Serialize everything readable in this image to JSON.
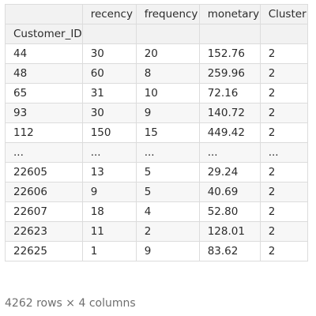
{
  "table": {
    "columns": [
      "recency",
      "frequency",
      "monetary",
      "Cluster"
    ],
    "index_name": "Customer_ID",
    "rows": [
      {
        "index": "44",
        "cells": [
          "30",
          "20",
          "152.76",
          "2"
        ]
      },
      {
        "index": "48",
        "cells": [
          "60",
          "8",
          "259.96",
          "2"
        ]
      },
      {
        "index": "65",
        "cells": [
          "31",
          "10",
          "72.16",
          "2"
        ]
      },
      {
        "index": "93",
        "cells": [
          "30",
          "9",
          "140.72",
          "2"
        ]
      },
      {
        "index": "112",
        "cells": [
          "150",
          "15",
          "449.42",
          "2"
        ]
      },
      {
        "index": "...",
        "cells": [
          "...",
          "...",
          "...",
          "..."
        ]
      },
      {
        "index": "22605",
        "cells": [
          "13",
          "5",
          "29.24",
          "2"
        ]
      },
      {
        "index": "22606",
        "cells": [
          "9",
          "5",
          "40.69",
          "2"
        ]
      },
      {
        "index": "22607",
        "cells": [
          "18",
          "4",
          "52.80",
          "2"
        ]
      },
      {
        "index": "22623",
        "cells": [
          "11",
          "2",
          "128.01",
          "2"
        ]
      },
      {
        "index": "22625",
        "cells": [
          "1",
          "9",
          "83.62",
          "2"
        ]
      }
    ]
  },
  "footer": {
    "shape_text": "4262 rows × 4 columns"
  }
}
